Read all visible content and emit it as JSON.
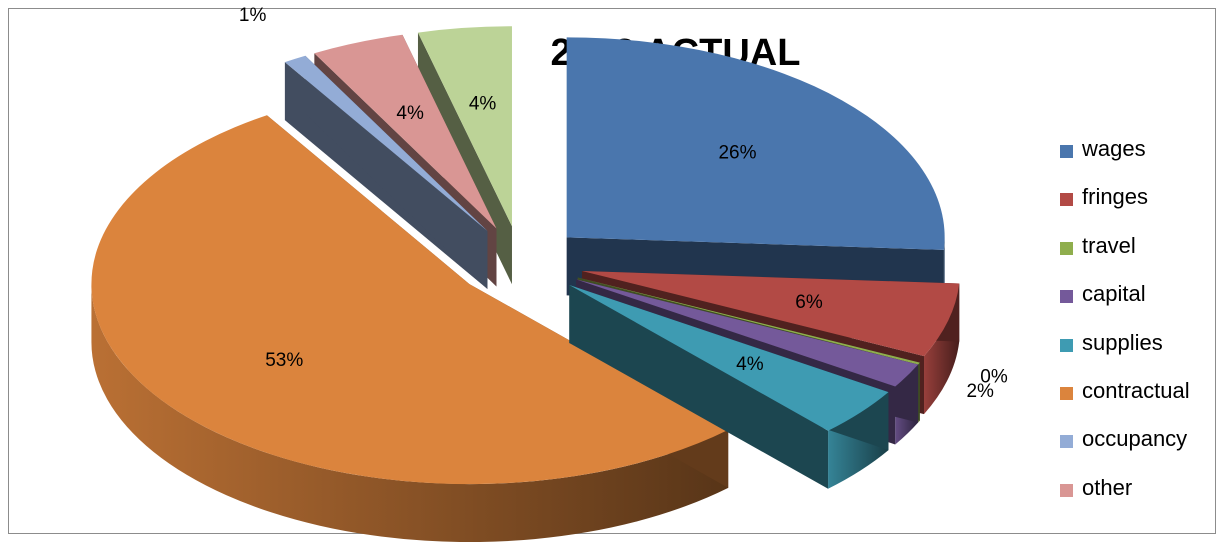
{
  "chart_data": {
    "type": "pie",
    "title": "2013 ACTUAL",
    "categories": [
      "wages",
      "fringes",
      "travel",
      "capital",
      "supplies",
      "contractual",
      "occupancy",
      "other",
      ""
    ],
    "values": [
      26,
      6,
      0,
      2,
      4,
      53,
      1,
      4,
      4
    ],
    "data_labels": [
      "26%",
      "6%",
      "0%",
      "2%",
      "4%",
      "53%",
      "1%",
      "4%",
      "4%"
    ],
    "colors": [
      "#4A76AD",
      "#B24A45",
      "#8FAE4D",
      "#74599A",
      "#3E9BB2",
      "#DB843D",
      "#93ACD6",
      "#D99694",
      "#BCD397"
    ],
    "legend": {
      "position": "right",
      "entries": [
        "wages",
        "fringes",
        "travel",
        "capital",
        "supplies",
        "contractual",
        "occupancy",
        "other"
      ]
    },
    "style": "3d-exploded"
  }
}
